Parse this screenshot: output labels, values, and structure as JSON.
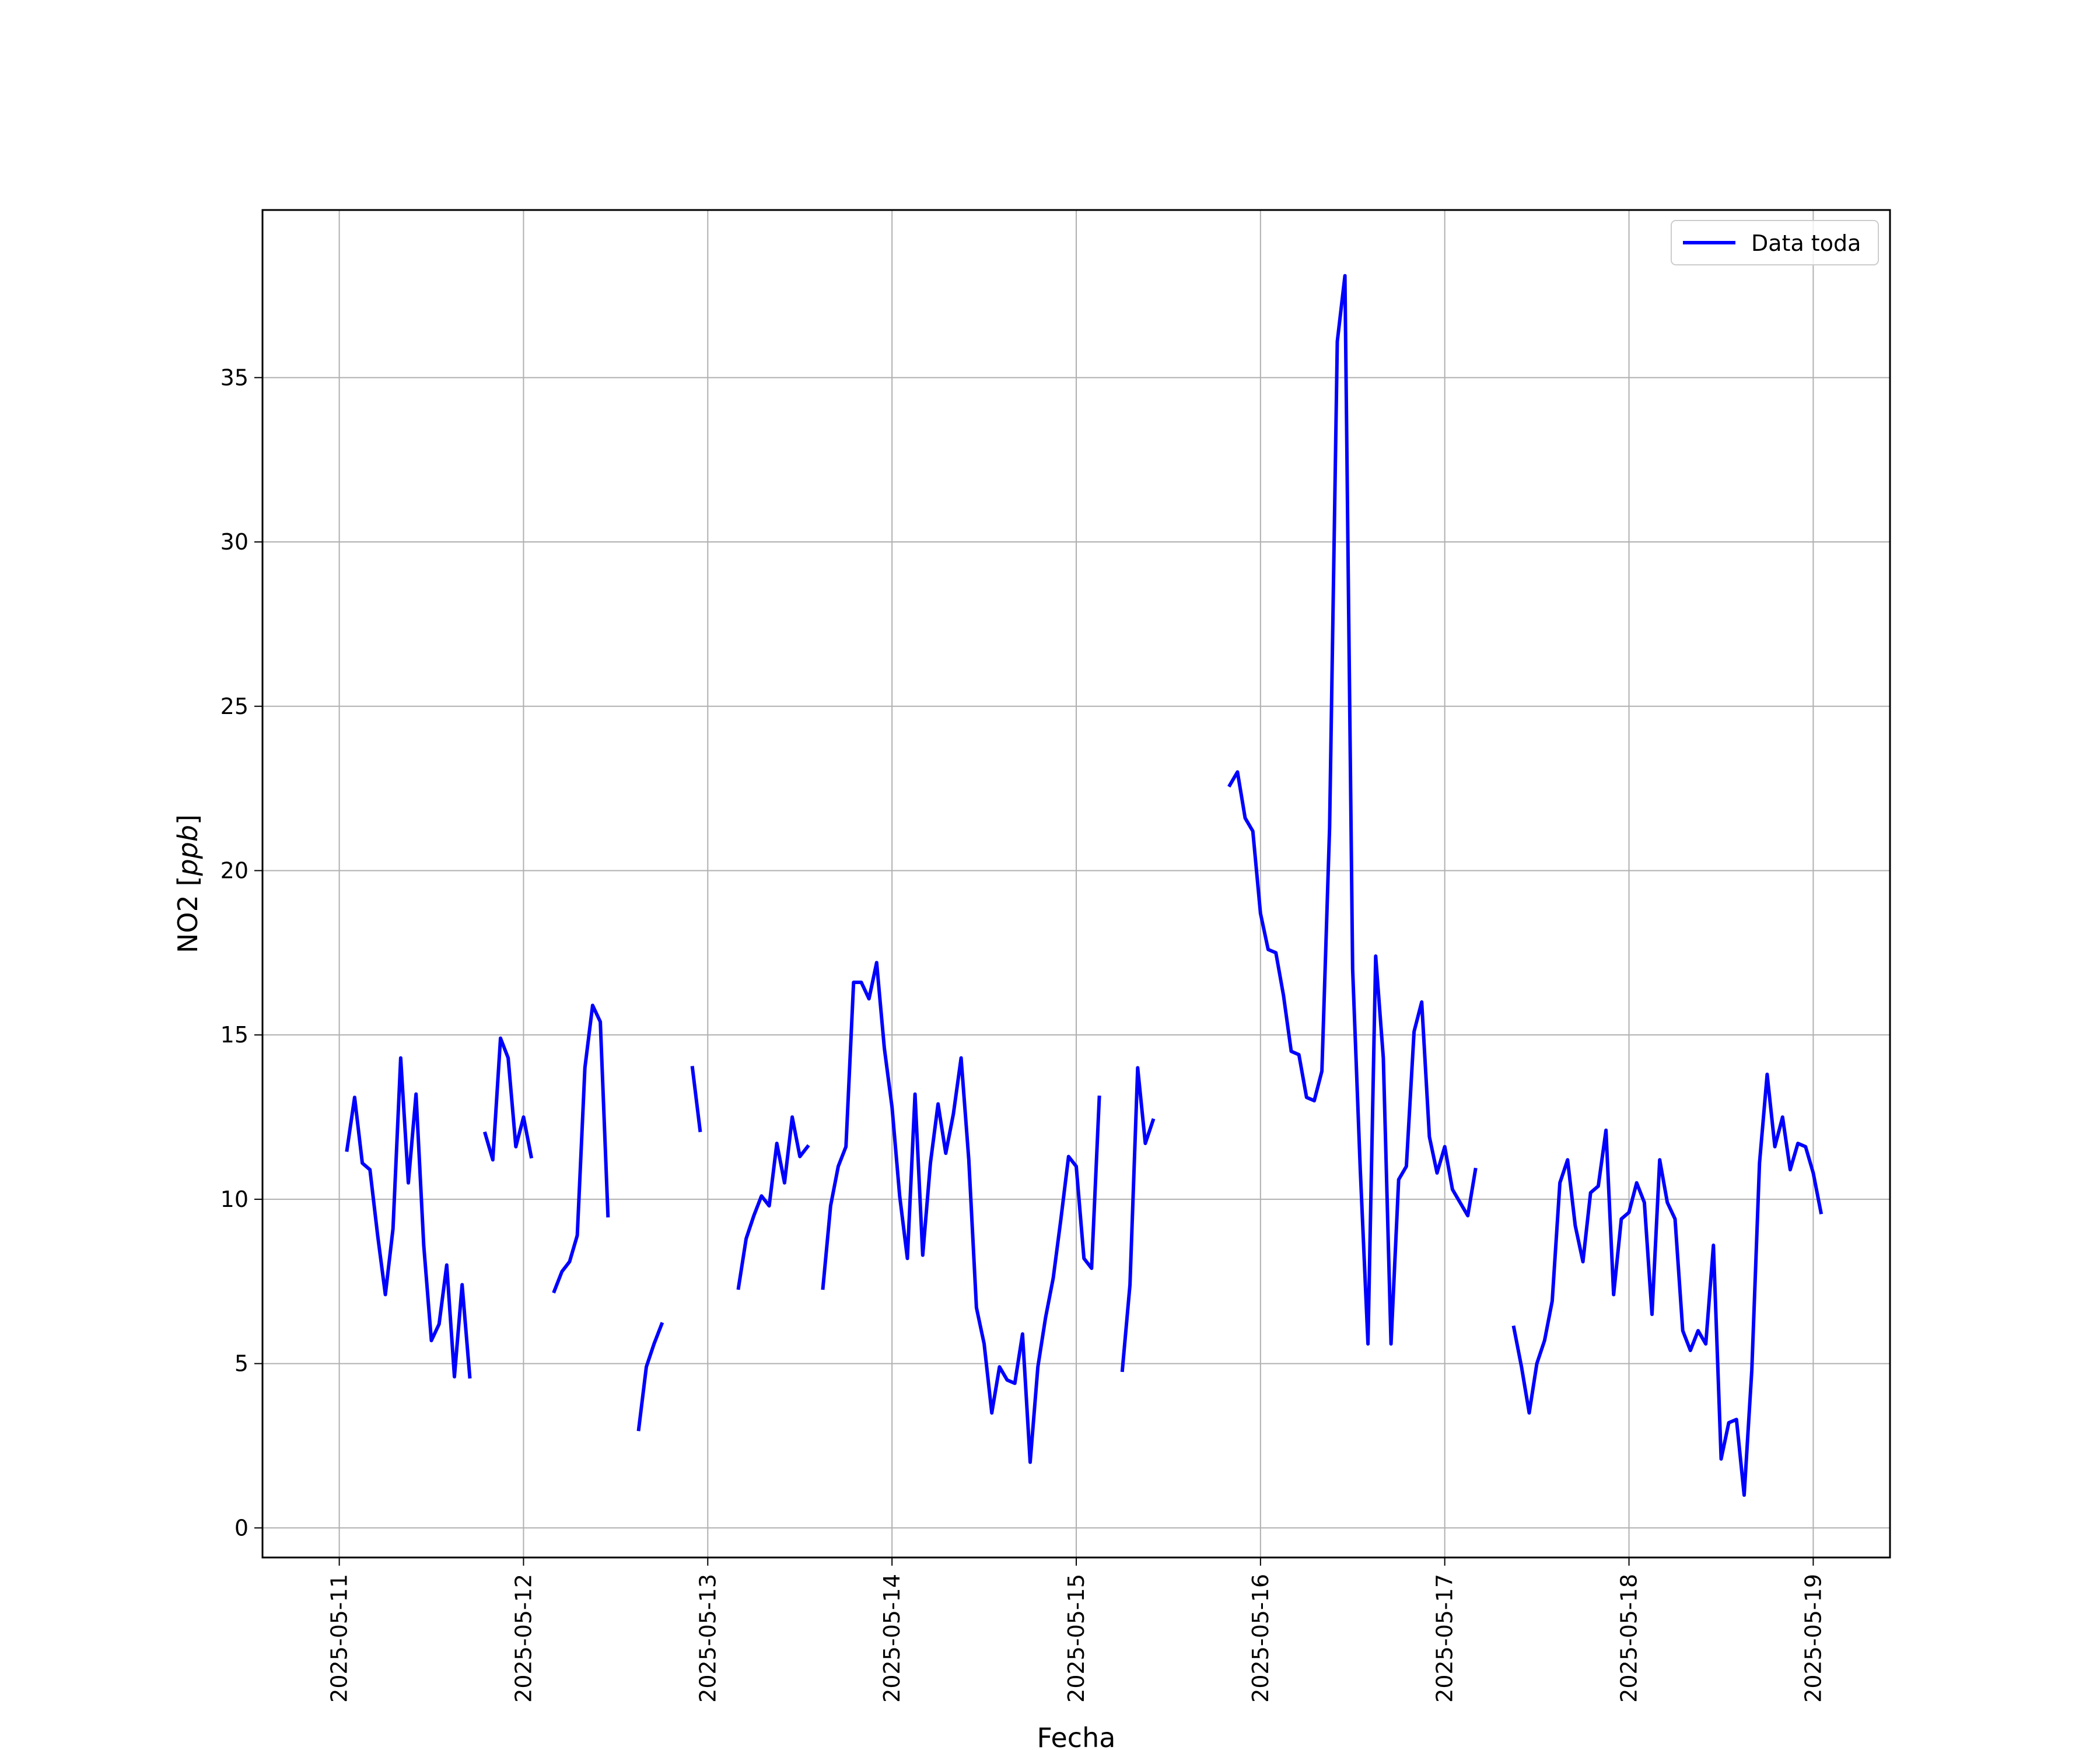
{
  "chart_data": {
    "type": "line",
    "title": "",
    "xlabel": "Fecha",
    "ylabel": "NO2 [ppb]",
    "ylabel_parts": {
      "main": "NO2 ",
      "bracket_open": "[",
      "unit": "ppb",
      "bracket_close": "]"
    },
    "xlim": [
      "2025-05-10T14:00",
      "2025-05-19T10:00"
    ],
    "ylim": [
      -0.9,
      40.1
    ],
    "x_ticks": [
      "2025-05-11",
      "2025-05-12",
      "2025-05-13",
      "2025-05-14",
      "2025-05-15",
      "2025-05-16",
      "2025-05-17",
      "2025-05-18",
      "2025-05-19"
    ],
    "y_ticks": [
      0,
      5,
      10,
      15,
      20,
      25,
      30,
      35
    ],
    "y_tick_labels": [
      "0",
      "5",
      "10",
      "15",
      "20",
      "25",
      "30",
      "35"
    ],
    "grid": true,
    "legend": {
      "position": "top-right"
    },
    "series": [
      {
        "name": "Data toda",
        "color": "#0000ff",
        "segments": [
          [
            [
              "2025-05-11T01:00",
              11.5
            ],
            [
              "2025-05-11T02:00",
              13.1
            ],
            [
              "2025-05-11T03:00",
              11.1
            ],
            [
              "2025-05-11T04:00",
              10.9
            ],
            [
              "2025-05-11T05:00",
              8.9
            ],
            [
              "2025-05-11T06:00",
              7.1
            ],
            [
              "2025-05-11T07:00",
              9.1
            ],
            [
              "2025-05-11T08:00",
              14.3
            ],
            [
              "2025-05-11T09:00",
              10.5
            ],
            [
              "2025-05-11T10:00",
              13.2
            ],
            [
              "2025-05-11T11:00",
              8.6
            ],
            [
              "2025-05-11T12:00",
              5.7
            ],
            [
              "2025-05-11T13:00",
              6.2
            ],
            [
              "2025-05-11T14:00",
              8.0
            ],
            [
              "2025-05-11T15:00",
              4.6
            ],
            [
              "2025-05-11T16:00",
              7.4
            ],
            [
              "2025-05-11T17:00",
              4.6
            ]
          ],
          [
            [
              "2025-05-11T19:00",
              12.0
            ],
            [
              "2025-05-11T20:00",
              11.2
            ],
            [
              "2025-05-11T21:00",
              14.9
            ],
            [
              "2025-05-11T22:00",
              14.3
            ],
            [
              "2025-05-11T23:00",
              11.6
            ],
            [
              "2025-05-12T00:00",
              12.5
            ],
            [
              "2025-05-12T01:00",
              11.3
            ]
          ],
          [
            [
              "2025-05-12T04:00",
              7.2
            ],
            [
              "2025-05-12T05:00",
              7.8
            ],
            [
              "2025-05-12T06:00",
              8.1
            ],
            [
              "2025-05-12T07:00",
              8.9
            ],
            [
              "2025-05-12T08:00",
              14.0
            ],
            [
              "2025-05-12T09:00",
              15.9
            ],
            [
              "2025-05-12T10:00",
              15.4
            ],
            [
              "2025-05-12T11:00",
              9.5
            ]
          ],
          [
            [
              "2025-05-12T15:00",
              3.0
            ],
            [
              "2025-05-12T16:00",
              4.9
            ],
            [
              "2025-05-12T17:00",
              5.6
            ],
            [
              "2025-05-12T18:00",
              6.2
            ]
          ],
          [
            [
              "2025-05-12T22:00",
              14.0
            ],
            [
              "2025-05-12T23:00",
              12.1
            ]
          ],
          [
            [
              "2025-05-13T04:00",
              7.3
            ],
            [
              "2025-05-13T05:00",
              8.8
            ],
            [
              "2025-05-13T06:00",
              9.5
            ],
            [
              "2025-05-13T07:00",
              10.1
            ],
            [
              "2025-05-13T08:00",
              9.8
            ],
            [
              "2025-05-13T09:00",
              11.7
            ],
            [
              "2025-05-13T10:00",
              10.5
            ],
            [
              "2025-05-13T11:00",
              12.5
            ],
            [
              "2025-05-13T12:00",
              11.3
            ],
            [
              "2025-05-13T13:00",
              11.6
            ]
          ],
          [
            [
              "2025-05-13T15:00",
              7.3
            ],
            [
              "2025-05-13T16:00",
              9.8
            ],
            [
              "2025-05-13T17:00",
              11.0
            ],
            [
              "2025-05-13T18:00",
              11.6
            ],
            [
              "2025-05-13T19:00",
              16.6
            ],
            [
              "2025-05-13T20:00",
              16.6
            ],
            [
              "2025-05-13T21:00",
              16.1
            ],
            [
              "2025-05-13T22:00",
              17.2
            ],
            [
              "2025-05-13T23:00",
              14.6
            ],
            [
              "2025-05-14T00:00",
              12.8
            ],
            [
              "2025-05-14T01:00",
              10.1
            ],
            [
              "2025-05-14T02:00",
              8.2
            ],
            [
              "2025-05-14T03:00",
              13.2
            ],
            [
              "2025-05-14T04:00",
              8.3
            ],
            [
              "2025-05-14T05:00",
              11.1
            ],
            [
              "2025-05-14T06:00",
              12.9
            ],
            [
              "2025-05-14T07:00",
              11.4
            ],
            [
              "2025-05-14T08:00",
              12.6
            ],
            [
              "2025-05-14T09:00",
              14.3
            ],
            [
              "2025-05-14T10:00",
              11.2
            ],
            [
              "2025-05-14T11:00",
              6.7
            ],
            [
              "2025-05-14T12:00",
              5.6
            ],
            [
              "2025-05-14T13:00",
              3.5
            ],
            [
              "2025-05-14T14:00",
              4.9
            ],
            [
              "2025-05-14T15:00",
              4.5
            ],
            [
              "2025-05-14T16:00",
              4.4
            ],
            [
              "2025-05-14T17:00",
              5.9
            ],
            [
              "2025-05-14T18:00",
              2.0
            ],
            [
              "2025-05-14T19:00",
              4.9
            ],
            [
              "2025-05-14T20:00",
              6.4
            ],
            [
              "2025-05-14T21:00",
              7.6
            ],
            [
              "2025-05-14T22:00",
              9.4
            ],
            [
              "2025-05-14T23:00",
              11.3
            ],
            [
              "2025-05-15T00:00",
              11.0
            ],
            [
              "2025-05-15T01:00",
              8.2
            ],
            [
              "2025-05-15T02:00",
              7.9
            ],
            [
              "2025-05-15T03:00",
              13.1
            ]
          ],
          [
            [
              "2025-05-15T06:00",
              4.8
            ],
            [
              "2025-05-15T07:00",
              7.4
            ],
            [
              "2025-05-15T08:00",
              14.0
            ],
            [
              "2025-05-15T09:00",
              11.7
            ],
            [
              "2025-05-15T10:00",
              12.4
            ]
          ],
          [
            [
              "2025-05-15T20:00",
              22.6
            ],
            [
              "2025-05-15T21:00",
              23.0
            ],
            [
              "2025-05-15T22:00",
              21.6
            ],
            [
              "2025-05-15T23:00",
              21.2
            ],
            [
              "2025-05-16T00:00",
              18.7
            ],
            [
              "2025-05-16T01:00",
              17.6
            ],
            [
              "2025-05-16T02:00",
              17.5
            ],
            [
              "2025-05-16T03:00",
              16.2
            ],
            [
              "2025-05-16T04:00",
              14.5
            ],
            [
              "2025-05-16T05:00",
              14.4
            ],
            [
              "2025-05-16T06:00",
              13.1
            ],
            [
              "2025-05-16T07:00",
              13.0
            ],
            [
              "2025-05-16T08:00",
              13.9
            ],
            [
              "2025-05-16T09:00",
              21.3
            ],
            [
              "2025-05-16T10:00",
              36.1
            ],
            [
              "2025-05-16T11:00",
              38.1
            ],
            [
              "2025-05-16T12:00",
              17.0
            ],
            [
              "2025-05-16T13:00",
              10.9
            ],
            [
              "2025-05-16T14:00",
              5.6
            ],
            [
              "2025-05-16T15:00",
              17.4
            ],
            [
              "2025-05-16T16:00",
              14.3
            ],
            [
              "2025-05-16T17:00",
              5.6
            ],
            [
              "2025-05-16T18:00",
              10.6
            ],
            [
              "2025-05-16T19:00",
              11.0
            ],
            [
              "2025-05-16T20:00",
              15.1
            ],
            [
              "2025-05-16T21:00",
              16.0
            ],
            [
              "2025-05-16T22:00",
              11.9
            ],
            [
              "2025-05-16T23:00",
              10.8
            ],
            [
              "2025-05-17T00:00",
              11.6
            ],
            [
              "2025-05-17T01:00",
              10.3
            ],
            [
              "2025-05-17T02:00",
              9.9
            ],
            [
              "2025-05-17T03:00",
              9.5
            ],
            [
              "2025-05-17T04:00",
              10.9
            ]
          ],
          [
            [
              "2025-05-17T09:00",
              6.1
            ],
            [
              "2025-05-17T10:00",
              4.9
            ],
            [
              "2025-05-17T11:00",
              3.5
            ],
            [
              "2025-05-17T12:00",
              5.0
            ],
            [
              "2025-05-17T13:00",
              5.7
            ],
            [
              "2025-05-17T14:00",
              6.9
            ],
            [
              "2025-05-17T15:00",
              10.5
            ],
            [
              "2025-05-17T16:00",
              11.2
            ],
            [
              "2025-05-17T17:00",
              9.2
            ],
            [
              "2025-05-17T18:00",
              8.1
            ],
            [
              "2025-05-17T19:00",
              10.2
            ],
            [
              "2025-05-17T20:00",
              10.4
            ],
            [
              "2025-05-17T21:00",
              12.1
            ],
            [
              "2025-05-17T22:00",
              7.1
            ],
            [
              "2025-05-17T23:00",
              9.4
            ],
            [
              "2025-05-18T00:00",
              9.6
            ],
            [
              "2025-05-18T01:00",
              10.5
            ],
            [
              "2025-05-18T02:00",
              9.9
            ],
            [
              "2025-05-18T03:00",
              6.5
            ],
            [
              "2025-05-18T04:00",
              11.2
            ],
            [
              "2025-05-18T05:00",
              9.9
            ],
            [
              "2025-05-18T06:00",
              9.4
            ],
            [
              "2025-05-18T07:00",
              6.0
            ],
            [
              "2025-05-18T08:00",
              5.4
            ],
            [
              "2025-05-18T09:00",
              6.0
            ],
            [
              "2025-05-18T10:00",
              5.6
            ],
            [
              "2025-05-18T11:00",
              8.6
            ],
            [
              "2025-05-18T12:00",
              2.1
            ],
            [
              "2025-05-18T13:00",
              3.2
            ],
            [
              "2025-05-18T14:00",
              3.3
            ],
            [
              "2025-05-18T15:00",
              1.0
            ],
            [
              "2025-05-18T16:00",
              4.8
            ],
            [
              "2025-05-18T17:00",
              11.1
            ],
            [
              "2025-05-18T18:00",
              13.8
            ],
            [
              "2025-05-18T19:00",
              11.6
            ],
            [
              "2025-05-18T20:00",
              12.5
            ],
            [
              "2025-05-18T21:00",
              10.9
            ],
            [
              "2025-05-18T22:00",
              11.7
            ],
            [
              "2025-05-18T23:00",
              11.6
            ],
            [
              "2025-05-19T00:00",
              10.8
            ],
            [
              "2025-05-19T01:00",
              9.6
            ]
          ]
        ]
      }
    ]
  }
}
